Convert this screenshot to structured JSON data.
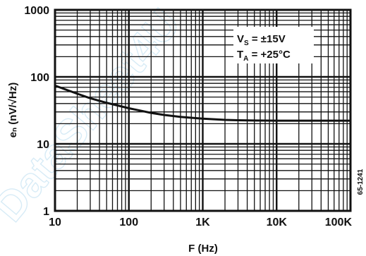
{
  "watermark_text": "DataSheet4U",
  "chart_data": {
    "type": "line",
    "title": "",
    "xlabel": "F (Hz)",
    "ylabel": "eₙ (nV/√Hz)",
    "xscale": "log",
    "yscale": "log",
    "xlim": [
      10,
      100000
    ],
    "ylim": [
      1,
      1000
    ],
    "grid": true,
    "x_ticks": [
      {
        "value": 10,
        "label": "10"
      },
      {
        "value": 100,
        "label": "100"
      },
      {
        "value": 1000,
        "label": "1K"
      },
      {
        "value": 10000,
        "label": "10K"
      },
      {
        "value": 100000,
        "label": "100K"
      }
    ],
    "y_ticks": [
      {
        "value": 1,
        "label": "1"
      },
      {
        "value": 10,
        "label": "10"
      },
      {
        "value": 100,
        "label": "100"
      },
      {
        "value": 1000,
        "label": "1000"
      }
    ],
    "conditions": {
      "line1_main": "V",
      "line1_sub": "S",
      "line1_rest": " = ±15V",
      "line2_main": "T",
      "line2_sub": "A",
      "line2_rest": " = +25°C"
    },
    "figure_code": "65-1241",
    "series": [
      {
        "x": [
          10,
          15,
          20,
          30,
          50,
          70,
          100,
          150,
          200,
          300,
          500,
          700,
          1000,
          1500,
          2000,
          3000,
          5000,
          10000,
          20000,
          50000,
          100000
        ],
        "y": [
          74,
          63,
          56,
          48,
          41,
          37.5,
          34,
          31,
          29,
          27,
          25.3,
          24.5,
          23.8,
          23.2,
          22.8,
          22.5,
          22.3,
          22.2,
          22.2,
          22.2,
          22.2
        ]
      }
    ],
    "colors": {
      "line": "#111111",
      "grid": "#111111",
      "watermark": "#b7dcf0"
    }
  }
}
